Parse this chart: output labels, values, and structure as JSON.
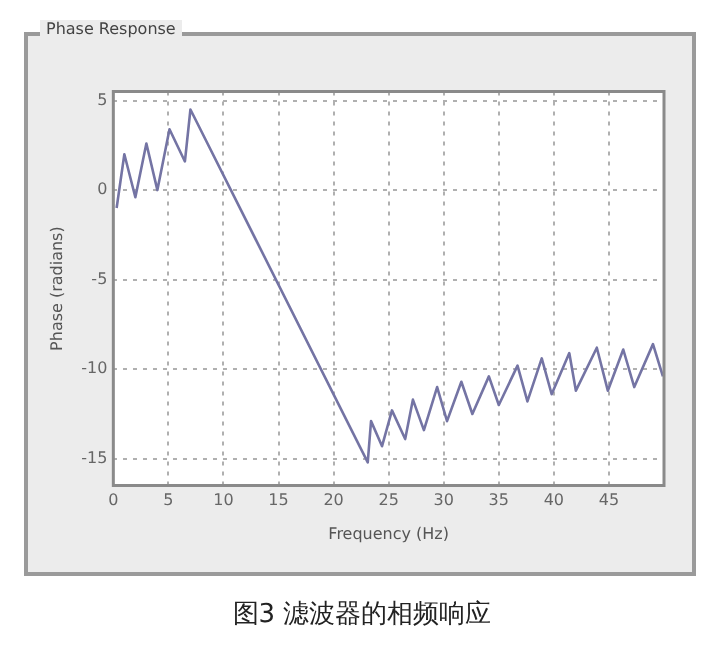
{
  "chart_data": {
    "type": "line",
    "title": "Phase Response",
    "xlabel": "Frequency (Hz)",
    "ylabel": "Phase (radians)",
    "annotations": [
      "图3 滤波器的相频响应"
    ],
    "x": [
      0.3,
      1,
      2,
      3,
      4,
      5.1,
      6.5,
      7,
      23.1,
      23.4,
      24.4,
      25.3,
      26.5,
      27.2,
      28.2,
      29.4,
      30.3,
      31.6,
      32.6,
      34.1,
      35,
      36.7,
      37.6,
      38.9,
      39.8,
      41.4,
      42,
      43.9,
      44.9,
      46.3,
      47.3,
      49,
      49.9
    ],
    "series": [
      {
        "color": "#7474a4",
        "values": [
          -1,
          2,
          -0.4,
          2.6,
          0,
          3.4,
          1.6,
          4.5,
          -15.2,
          -12.9,
          -14.3,
          -12.3,
          -13.9,
          -11.7,
          -13.4,
          -11,
          -12.9,
          -10.7,
          -12.5,
          -10.4,
          -12,
          -9.8,
          -11.8,
          -9.4,
          -11.4,
          -9.1,
          -11.2,
          -8.8,
          -11.2,
          -8.9,
          -11,
          -8.6,
          -10.4
        ]
      }
    ],
    "xlim": [
      0,
      50
    ],
    "xticks": [
      0,
      5,
      10,
      15,
      20,
      25,
      30,
      35,
      40,
      45
    ],
    "ylim": [
      -16.5,
      5.5
    ],
    "yticks": [
      5,
      0,
      -5,
      -10,
      -15
    ],
    "grid": true,
    "line_style": "solid",
    "marker": "none",
    "legend": false
  }
}
